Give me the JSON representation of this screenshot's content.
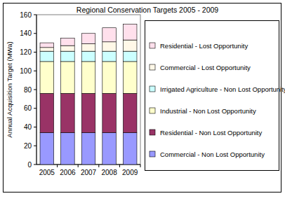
{
  "chart_data": {
    "type": "bar",
    "title": "Regional Conservation Targets 2005 - 2009",
    "y_label": "Annual Acquisition Target (MWa)",
    "categories": [
      "2005",
      "2006",
      "2007",
      "2008",
      "2009"
    ],
    "stacked": true,
    "grid": false,
    "legend": "right",
    "ylim": [
      0,
      160
    ],
    "yticks": [
      0,
      20,
      40,
      60,
      80,
      100,
      120,
      140,
      160
    ],
    "series": [
      {
        "name": "Commercial - Non Lost Opportunity",
        "color": "#9999ff",
        "values": [
          34,
          34,
          34,
          34,
          34
        ]
      },
      {
        "name": "Residential - Non Lost Opportunity",
        "color": "#993366",
        "values": [
          42,
          42,
          42,
          42,
          42
        ]
      },
      {
        "name": "Industrial - Non Lost Opportunity",
        "color": "#ffffcc",
        "values": [
          34,
          34,
          34,
          34,
          34
        ]
      },
      {
        "name": "Irrigated Agriculture - Non Lost Opportunity",
        "color": "#ccffff",
        "values": [
          11,
          11,
          11,
          11,
          11
        ]
      },
      {
        "name": "Commercial - Lost Opportunity",
        "color": "#fff8e8",
        "values": [
          4,
          6,
          8,
          10,
          12
        ]
      },
      {
        "name": "Residential - Lost Opportunity",
        "color": "#ffe0ec",
        "values": [
          5,
          8,
          11,
          15,
          17
        ]
      }
    ]
  }
}
